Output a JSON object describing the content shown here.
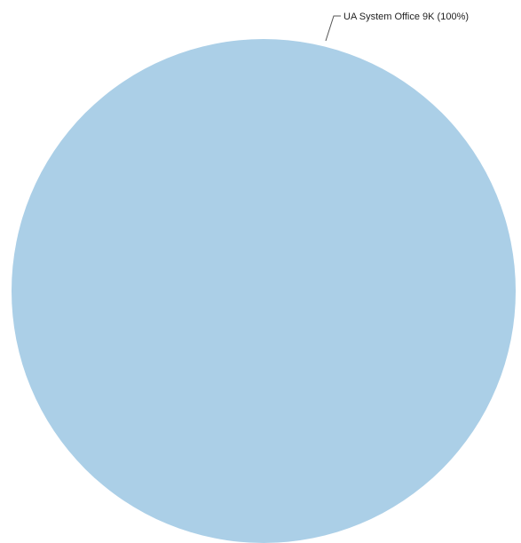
{
  "chart_data": {
    "type": "pie",
    "slices": [
      {
        "label": "UA System Office 9K (100%)",
        "name": "UA System Office",
        "value": 9000,
        "percent": 100,
        "color": "#abcfe7"
      }
    ]
  }
}
